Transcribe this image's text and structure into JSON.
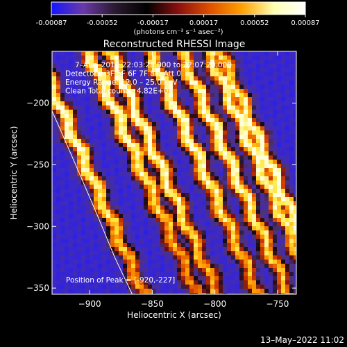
{
  "colorbar": {
    "tick_labels": [
      "-0.00087",
      "-0.00052",
      "-0.00017",
      "0.00017",
      "0.00052",
      "0.00087"
    ],
    "units_text": "(photons cm⁻² s⁻¹ asec⁻²)",
    "range": [
      -0.00087,
      0.00087
    ],
    "colors": [
      "#1515ff",
      "#6a3aa8",
      "#2a1a30",
      "#000000",
      "#8a1010",
      "#e05000",
      "#ffa000",
      "#ffffb0",
      "#ffffff"
    ]
  },
  "footer": {
    "timestamp": "13–May–2022 11:02"
  },
  "chart_data": {
    "type": "heatmap",
    "title": "Reconstructed RHESSI Image",
    "xlabel": "Heliocentric X (arcsec)",
    "ylabel": "Heliocentric Y (arcsec)",
    "xlim": [
      -930,
      -735
    ],
    "ylim": [
      -355,
      -158
    ],
    "xticks": [
      -900,
      -850,
      -800,
      -750
    ],
    "yticks": [
      -200,
      -250,
      -300,
      -350
    ],
    "annotations": [
      "7–Aug–2012 22:03:28.000 to 22:07:20.000",
      "Detectors: 3F 5F 6F 7F 8F, Att 0",
      "Energy Range: 12.0 – 25.0 keV",
      "Clean    Total counts: 4.82E+03"
    ],
    "peak_label": "Position of Peak = [-920,-227]",
    "peak": [
      -920,
      -227
    ],
    "limb_curve": [
      [
        -935,
        -195
      ],
      [
        -921,
        -227
      ],
      [
        -906,
        -262
      ],
      [
        -893,
        -293
      ],
      [
        -880,
        -325
      ],
      [
        -866,
        -355
      ]
    ],
    "stripes": [
      {
        "x": -917,
        "y": -218
      },
      {
        "x": -884,
        "y": -196
      },
      {
        "x": -858,
        "y": -218
      },
      {
        "x": -826,
        "y": -216
      },
      {
        "x": -796,
        "y": -230
      },
      {
        "x": -772,
        "y": -233
      },
      {
        "x": -755,
        "y": -253
      }
    ]
  }
}
